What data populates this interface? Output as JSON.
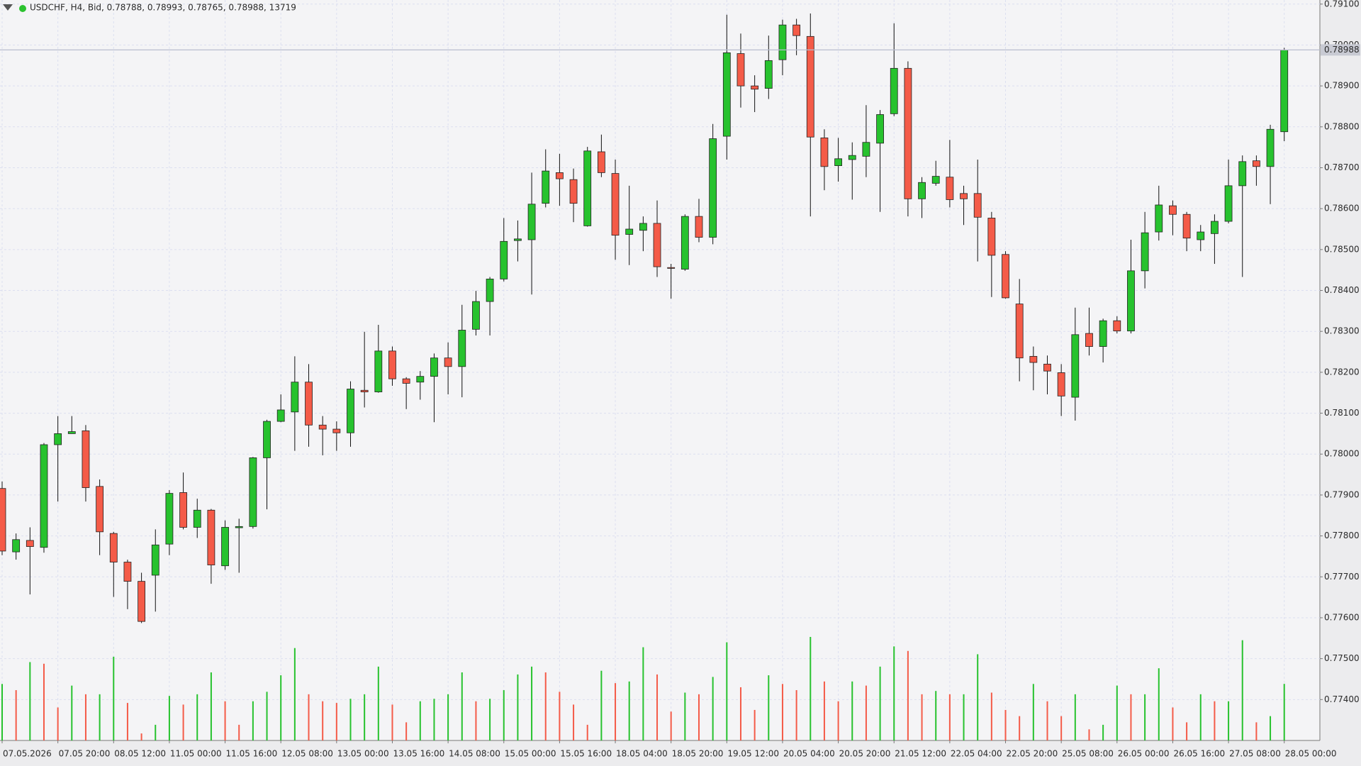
{
  "chart_data": {
    "type": "candlestick",
    "title": "USDCHF, H4, Bid, 0.78788, 0.78993, 0.78765, 0.78988, 13719",
    "up_color": "#27c22e",
    "down_color": "#f45b48",
    "grid": true,
    "categories": [
      "07.05.2026",
      null,
      null,
      null,
      "07.05 20:00",
      null,
      null,
      null,
      "08.05 12:00",
      null,
      null,
      null,
      "11.05 00:00",
      null,
      null,
      null,
      "11.05 16:00",
      null,
      null,
      null,
      "12.05 08:00",
      null,
      null,
      null,
      "13.05 00:00",
      null,
      null,
      null,
      "13.05 16:00",
      null,
      null,
      null,
      "14.05 08:00",
      null,
      null,
      null,
      "15.05 00:00",
      null,
      null,
      null,
      "15.05 16:00",
      null,
      null,
      null,
      "18.05 04:00",
      null,
      null,
      null,
      "18.05 20:00",
      null,
      null,
      null,
      "19.05 12:00",
      null,
      null,
      null,
      "20.05 04:00",
      null,
      null,
      null,
      "20.05 20:00",
      null,
      null,
      null,
      "21.05 12:00",
      null,
      null,
      null,
      "22.05 04:00",
      null,
      null,
      null,
      "22.05 20:00",
      null,
      null,
      null,
      "25.05 08:00",
      null,
      null,
      null,
      "26.05 00:00",
      null,
      null,
      null,
      "26.05 16:00",
      null,
      null,
      null,
      "27.05 08:00",
      null,
      null,
      null,
      "28.05 00:00"
    ],
    "open": [
      0.77916,
      0.77761,
      0.77789,
      0.77772,
      0.78023,
      0.7805,
      0.78057,
      0.77921,
      0.77806,
      0.77736,
      0.77689,
      0.77704,
      0.7778,
      0.77906,
      0.77821,
      0.77863,
      0.77727,
      0.7782,
      0.77823,
      0.77991,
      0.7808,
      0.78103,
      0.78176,
      0.78071,
      0.78061,
      0.78052,
      0.78156,
      0.78152,
      0.78252,
      0.78184,
      0.78176,
      0.7819,
      0.78235,
      0.78214,
      0.78305,
      0.78373,
      0.78428,
      0.78522,
      0.78524,
      0.78613,
      0.78688,
      0.78671,
      0.78558,
      0.78739,
      0.78686,
      0.78537,
      0.78547,
      0.78564,
      0.78456,
      0.78452,
      0.78581,
      0.7853,
      0.78777,
      0.78979,
      0.789,
      0.78894,
      0.78964,
      0.79049,
      0.79021,
      0.78773,
      0.78705,
      0.7872,
      0.78728,
      0.7876,
      0.78832,
      0.78943,
      0.78624,
      0.78662,
      0.78677,
      0.78637,
      0.78637,
      0.78577,
      0.78488,
      0.78367,
      0.78239,
      0.7822,
      0.78199,
      0.78139,
      0.78295,
      0.78263,
      0.78326,
      0.78301,
      0.78448,
      0.78543,
      0.78607,
      0.78586,
      0.78524,
      0.78539,
      0.78569,
      0.78656,
      0.78717,
      0.78703,
      0.78788
    ],
    "high": [
      0.77933,
      0.77806,
      0.77821,
      0.78027,
      0.78093,
      0.78093,
      0.78071,
      0.77938,
      0.7781,
      0.77742,
      0.7771,
      0.77816,
      0.77912,
      0.77955,
      0.77891,
      0.77866,
      0.77838,
      0.77842,
      0.77993,
      0.78084,
      0.78146,
      0.78239,
      0.7822,
      0.78093,
      0.7808,
      0.78178,
      0.78299,
      0.78316,
      0.78263,
      0.78188,
      0.78203,
      0.78246,
      0.78273,
      0.78365,
      0.78399,
      0.78433,
      0.78577,
      0.78571,
      0.78688,
      0.78745,
      0.78734,
      0.78698,
      0.78751,
      0.78781,
      0.7872,
      0.78656,
      0.78581,
      0.7862,
      0.78465,
      0.78586,
      0.78624,
      0.78807,
      0.79074,
      0.79028,
      0.78926,
      0.79023,
      0.79062,
      0.79064,
      0.79077,
      0.78794,
      0.78773,
      0.78762,
      0.78853,
      0.78841,
      0.79053,
      0.7896,
      0.78677,
      0.78717,
      0.78768,
      0.78656,
      0.7872,
      0.78592,
      0.78496,
      0.78428,
      0.78263,
      0.78241,
      0.7822,
      0.78358,
      0.78358,
      0.78331,
      0.78337,
      0.78524,
      0.78592,
      0.78656,
      0.7862,
      0.78592,
      0.7856,
      0.78586,
      0.7872,
      0.7873,
      0.7873,
      0.78805,
      0.78993
    ],
    "low": [
      0.77753,
      0.77742,
      0.77657,
      0.77759,
      0.77884,
      0.7805,
      0.77884,
      0.77753,
      0.77651,
      0.77621,
      0.77587,
      0.77615,
      0.77753,
      0.77816,
      0.77795,
      0.77683,
      0.77717,
      0.7771,
      0.77818,
      0.77865,
      0.78078,
      0.78008,
      0.78018,
      0.77997,
      0.78008,
      0.78018,
      0.78114,
      0.7815,
      0.78167,
      0.7811,
      0.78133,
      0.78078,
      0.78146,
      0.78139,
      0.7829,
      0.7829,
      0.78422,
      0.78471,
      0.7839,
      0.78603,
      0.78607,
      0.78567,
      0.78556,
      0.78677,
      0.78475,
      0.78462,
      0.78496,
      0.78433,
      0.7838,
      0.78448,
      0.78518,
      0.78513,
      0.7872,
      0.78847,
      0.78836,
      0.78868,
      0.78926,
      0.78975,
      0.78581,
      0.78645,
      0.78666,
      0.78622,
      0.78677,
      0.78592,
      0.78826,
      0.78581,
      0.78577,
      0.78656,
      0.78603,
      0.7856,
      0.78471,
      0.78384,
      0.7838,
      0.78178,
      0.78156,
      0.78146,
      0.78093,
      0.78082,
      0.78241,
      0.78224,
      0.78295,
      0.78295,
      0.78405,
      0.78522,
      0.78535,
      0.78496,
      0.78496,
      0.78465,
      0.78564,
      0.78433,
      0.78656,
      0.78611,
      0.78765
    ],
    "close": [
      0.77763,
      0.77791,
      0.77774,
      0.78023,
      0.7805,
      0.78055,
      0.77918,
      0.7781,
      0.77736,
      0.77689,
      0.77591,
      0.77778,
      0.77904,
      0.77821,
      0.77863,
      0.77729,
      0.77821,
      0.77823,
      0.77991,
      0.7808,
      0.78108,
      0.78176,
      0.78071,
      0.78061,
      0.78052,
      0.78159,
      0.78152,
      0.78252,
      0.78184,
      0.78173,
      0.7819,
      0.78235,
      0.78214,
      0.78303,
      0.78373,
      0.78428,
      0.7852,
      0.78526,
      0.78611,
      0.78692,
      0.78673,
      0.78613,
      0.78741,
      0.78688,
      0.78535,
      0.7855,
      0.78564,
      0.78458,
      0.78454,
      0.78581,
      0.7853,
      0.78771,
      0.78981,
      0.789,
      0.78892,
      0.78962,
      0.79049,
      0.79023,
      0.78775,
      0.78703,
      0.78722,
      0.7873,
      0.78762,
      0.7883,
      0.78943,
      0.78624,
      0.78664,
      0.78679,
      0.78622,
      0.78624,
      0.78579,
      0.78486,
      0.78382,
      0.78235,
      0.78224,
      0.78203,
      0.78142,
      0.78292,
      0.78263,
      0.78326,
      0.78301,
      0.78448,
      0.78541,
      0.78609,
      0.78586,
      0.78528,
      0.78543,
      0.78569,
      0.78656,
      0.78715,
      0.78703,
      0.78794,
      0.78988
    ],
    "volume": [
      13700,
      12200,
      19000,
      18600,
      8000,
      13300,
      11200,
      11200,
      20300,
      9100,
      1700,
      3800,
      10800,
      8700,
      11200,
      16500,
      9500,
      3800,
      9500,
      11800,
      15800,
      22400,
      11200,
      9500,
      9100,
      10100,
      11200,
      17900,
      8700,
      4400,
      9500,
      10100,
      11200,
      16500,
      9500,
      10100,
      12200,
      16000,
      17900,
      16500,
      11800,
      8700,
      3800,
      16900,
      13900,
      14300,
      22600,
      16000,
      7000,
      11600,
      11200,
      15400,
      23800,
      12900,
      7400,
      15800,
      13700,
      12200,
      25100,
      14300,
      9500,
      14300,
      13300,
      17900,
      22800,
      21700,
      11200,
      12000,
      11200,
      11200,
      20900,
      11600,
      7400,
      5900,
      13700,
      9500,
      5900,
      11200,
      2700,
      3800,
      13300,
      11200,
      11200,
      17500,
      8000,
      4400,
      11200,
      9500,
      9500,
      24300,
      4400,
      5900,
      13719
    ],
    "ylim": [
      0.773,
      0.7911
    ],
    "yticks": [
      {
        "value": 0.774,
        "label": "0.77400"
      },
      {
        "value": 0.775,
        "label": "0.77500"
      },
      {
        "value": 0.776,
        "label": "0.77600"
      },
      {
        "value": 0.777,
        "label": "0.77700"
      },
      {
        "value": 0.778,
        "label": "0.77800"
      },
      {
        "value": 0.779,
        "label": "0.77900"
      },
      {
        "value": 0.78,
        "label": "0.78000"
      },
      {
        "value": 0.781,
        "label": "0.78100"
      },
      {
        "value": 0.782,
        "label": "0.78200"
      },
      {
        "value": 0.783,
        "label": "0.78300"
      },
      {
        "value": 0.784,
        "label": "0.78400"
      },
      {
        "value": 0.785,
        "label": "0.78500"
      },
      {
        "value": 0.786,
        "label": "0.78600"
      },
      {
        "value": 0.787,
        "label": "0.78700"
      },
      {
        "value": 0.788,
        "label": "0.78800"
      },
      {
        "value": 0.789,
        "label": "0.78900"
      },
      {
        "value": 0.79,
        "label": "0.79000"
      },
      {
        "value": 0.791,
        "label": "0.79100"
      }
    ],
    "price_line": {
      "value": 0.78988,
      "label": "0.78988"
    }
  }
}
